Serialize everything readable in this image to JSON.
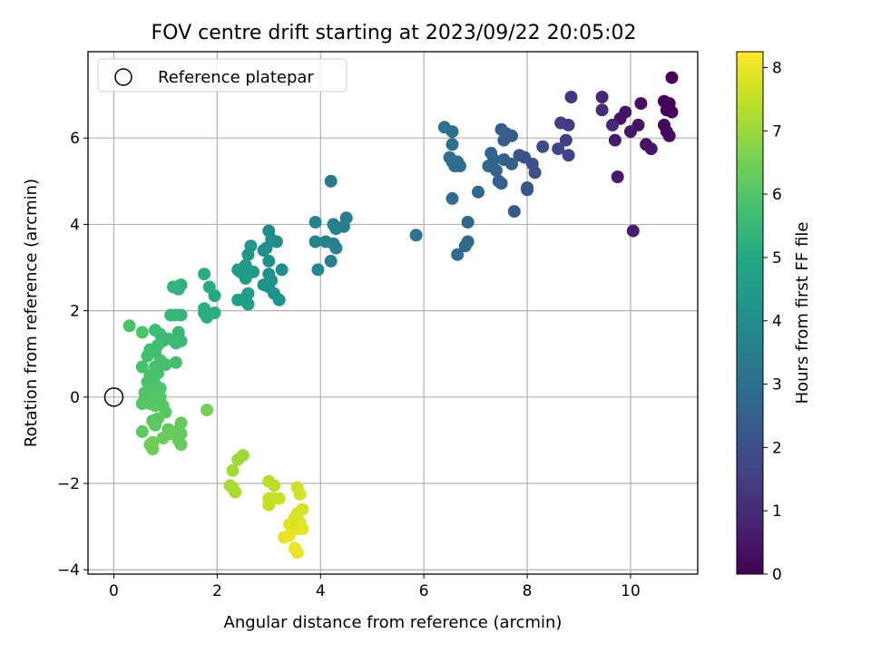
{
  "chart_data": {
    "type": "scatter",
    "title": "FOV centre drift starting at 2023/09/22 20:05:02",
    "xlabel": "Angular distance from reference (arcmin)",
    "ylabel": "Rotation from reference (arcmin)",
    "xlim": [
      -0.5,
      11.3
    ],
    "ylim": [
      -4.1,
      8.0
    ],
    "xticks": [
      0,
      2,
      4,
      6,
      8,
      10
    ],
    "yticks": [
      -4,
      -2,
      0,
      2,
      4,
      6
    ],
    "grid": true,
    "legend": {
      "position": "top-left",
      "entries": [
        "Reference platepar"
      ]
    },
    "reference_point": {
      "x": 0,
      "y": 0
    },
    "colorbar": {
      "label": "Hours from first FF file",
      "range": [
        0,
        8.25
      ],
      "ticks": [
        0,
        1,
        2,
        3,
        4,
        5,
        6,
        7,
        8
      ],
      "colormap": "viridis"
    },
    "series": [
      {
        "points": [
          [
            10.8,
            7.4,
            0.05
          ],
          [
            10.65,
            6.85,
            0.1
          ],
          [
            10.75,
            6.8,
            0.1
          ],
          [
            10.7,
            6.65,
            0.1
          ],
          [
            10.8,
            6.6,
            0.15
          ],
          [
            10.65,
            6.3,
            0.2
          ],
          [
            10.7,
            6.15,
            0.2
          ],
          [
            10.75,
            6.05,
            0.2
          ],
          [
            10.2,
            6.8,
            0.35
          ],
          [
            9.8,
            6.45,
            0.4
          ],
          [
            9.9,
            6.6,
            0.45
          ],
          [
            10.15,
            6.3,
            0.4
          ],
          [
            10.3,
            5.85,
            0.4
          ],
          [
            10.4,
            5.75,
            0.45
          ],
          [
            10.0,
            6.15,
            0.5
          ],
          [
            9.7,
            5.95,
            0.6
          ],
          [
            9.75,
            5.1,
            0.6
          ],
          [
            10.05,
            3.85,
            0.65
          ],
          [
            9.45,
            6.95,
            0.9
          ],
          [
            9.45,
            6.65,
            1.0
          ],
          [
            9.65,
            6.3,
            0.9
          ],
          [
            8.85,
            6.95,
            1.3
          ],
          [
            8.65,
            6.35,
            1.5
          ],
          [
            8.8,
            6.3,
            1.45
          ],
          [
            8.75,
            5.95,
            1.55
          ],
          [
            8.8,
            5.6,
            1.6
          ],
          [
            8.6,
            5.75,
            1.75
          ],
          [
            8.3,
            5.8,
            1.9
          ],
          [
            8.1,
            5.4,
            1.95
          ],
          [
            8.15,
            5.2,
            2.0
          ],
          [
            7.95,
            5.55,
            2.1
          ],
          [
            7.85,
            5.6,
            2.15
          ],
          [
            8.0,
            4.85,
            2.1
          ],
          [
            8.0,
            4.8,
            2.2
          ],
          [
            7.7,
            6.05,
            2.3
          ],
          [
            7.6,
            6.1,
            2.35
          ],
          [
            7.5,
            6.2,
            2.4
          ],
          [
            7.55,
            5.95,
            2.4
          ],
          [
            7.55,
            5.5,
            2.5
          ],
          [
            7.7,
            5.4,
            2.45
          ],
          [
            7.75,
            4.3,
            2.3
          ],
          [
            7.3,
            5.65,
            2.55
          ],
          [
            7.35,
            5.5,
            2.6
          ],
          [
            7.4,
            5.25,
            2.6
          ],
          [
            7.45,
            5.0,
            2.5
          ],
          [
            7.5,
            4.95,
            2.55
          ],
          [
            7.25,
            5.35,
            2.7
          ],
          [
            7.05,
            4.75,
            2.75
          ],
          [
            6.85,
            4.05,
            2.75
          ],
          [
            6.85,
            3.6,
            2.85
          ],
          [
            6.8,
            3.5,
            2.8
          ],
          [
            6.65,
            3.3,
            2.9
          ],
          [
            6.55,
            4.6,
            2.9
          ],
          [
            6.6,
            5.35,
            2.95
          ],
          [
            6.55,
            5.45,
            2.95
          ],
          [
            6.65,
            5.45,
            2.9
          ],
          [
            6.7,
            5.35,
            2.95
          ],
          [
            6.5,
            5.55,
            3.0
          ],
          [
            6.55,
            5.85,
            3.0
          ],
          [
            6.55,
            6.15,
            3.0
          ],
          [
            6.4,
            6.25,
            3.05
          ],
          [
            5.85,
            3.75,
            3.1
          ],
          [
            4.2,
            5.0,
            3.3
          ],
          [
            4.5,
            4.15,
            3.4
          ],
          [
            4.45,
            3.95,
            3.45
          ],
          [
            4.25,
            4.0,
            3.5
          ],
          [
            4.3,
            3.9,
            3.55
          ],
          [
            4.3,
            3.45,
            3.55
          ],
          [
            4.25,
            3.55,
            3.6
          ],
          [
            4.1,
            3.6,
            3.6
          ],
          [
            4.2,
            3.15,
            3.6
          ],
          [
            3.9,
            3.6,
            3.65
          ],
          [
            3.9,
            4.05,
            3.7
          ],
          [
            3.95,
            2.95,
            3.75
          ],
          [
            3.0,
            3.85,
            3.9
          ],
          [
            3.25,
            2.95,
            3.95
          ],
          [
            3.15,
            3.6,
            4.0
          ],
          [
            3.05,
            3.65,
            4.0
          ],
          [
            2.95,
            3.45,
            4.05
          ],
          [
            2.9,
            3.4,
            4.05
          ],
          [
            3.0,
            3.15,
            4.1
          ],
          [
            3.0,
            2.85,
            4.1
          ],
          [
            3.05,
            2.7,
            4.15
          ],
          [
            3.0,
            2.55,
            4.2
          ],
          [
            2.9,
            2.6,
            4.2
          ],
          [
            3.1,
            2.4,
            4.25
          ],
          [
            3.2,
            2.25,
            4.25
          ],
          [
            2.65,
            3.5,
            4.3
          ],
          [
            2.6,
            3.3,
            4.35
          ],
          [
            2.55,
            3.05,
            4.4
          ],
          [
            2.5,
            2.95,
            4.4
          ],
          [
            2.7,
            2.9,
            4.45
          ],
          [
            2.6,
            2.9,
            4.45
          ],
          [
            2.55,
            2.75,
            4.5
          ],
          [
            2.45,
            2.9,
            4.5
          ],
          [
            2.4,
            2.95,
            4.5
          ],
          [
            2.6,
            2.4,
            4.55
          ],
          [
            2.55,
            2.3,
            4.6
          ],
          [
            2.5,
            2.25,
            4.6
          ],
          [
            2.4,
            2.25,
            4.65
          ],
          [
            2.6,
            2.15,
            4.65
          ],
          [
            1.95,
            2.35,
            5.0
          ],
          [
            1.85,
            2.55,
            5.05
          ],
          [
            1.75,
            2.85,
            5.1
          ],
          [
            1.95,
            1.95,
            5.15
          ],
          [
            1.75,
            2.05,
            5.2
          ],
          [
            1.8,
            1.85,
            5.2
          ],
          [
            1.75,
            1.95,
            5.2
          ],
          [
            1.3,
            2.6,
            5.3
          ],
          [
            1.25,
            2.5,
            5.3
          ],
          [
            1.15,
            2.55,
            5.35
          ],
          [
            1.2,
            1.9,
            5.4
          ],
          [
            1.3,
            1.9,
            5.4
          ],
          [
            1.1,
            1.9,
            5.45
          ],
          [
            1.25,
            1.5,
            5.5
          ],
          [
            1.3,
            1.3,
            5.5
          ],
          [
            1.2,
            1.25,
            5.55
          ],
          [
            1.05,
            1.35,
            5.6
          ],
          [
            0.95,
            1.3,
            5.6
          ],
          [
            0.9,
            1.45,
            5.6
          ],
          [
            0.8,
            1.55,
            5.65
          ],
          [
            0.85,
            1.2,
            5.7
          ],
          [
            0.8,
            1.05,
            5.7
          ],
          [
            0.7,
            1.1,
            5.7
          ],
          [
            0.65,
            0.95,
            5.75
          ],
          [
            1.2,
            0.8,
            5.75
          ],
          [
            1.0,
            0.75,
            5.75
          ],
          [
            0.9,
            0.85,
            5.8
          ],
          [
            0.85,
            0.55,
            5.8
          ],
          [
            0.8,
            0.7,
            5.8
          ],
          [
            0.7,
            0.5,
            5.85
          ],
          [
            0.55,
            0.7,
            5.85
          ],
          [
            0.3,
            1.65,
            5.9
          ],
          [
            0.55,
            1.5,
            5.9
          ],
          [
            0.65,
            0.35,
            5.9
          ],
          [
            0.8,
            0.3,
            5.9
          ],
          [
            0.75,
            0.15,
            5.95
          ],
          [
            0.9,
            0.2,
            5.95
          ],
          [
            0.6,
            0.1,
            6.0
          ],
          [
            0.6,
            -0.05,
            6.0
          ],
          [
            0.55,
            -0.15,
            6.0
          ],
          [
            0.75,
            0.0,
            6.05
          ],
          [
            0.9,
            0.0,
            6.05
          ],
          [
            0.95,
            -0.2,
            6.05
          ],
          [
            0.8,
            -0.2,
            6.1
          ],
          [
            0.7,
            -0.15,
            6.1
          ],
          [
            1.0,
            -0.35,
            6.1
          ],
          [
            0.85,
            -0.5,
            6.15
          ],
          [
            0.75,
            -0.55,
            6.15
          ],
          [
            0.8,
            -0.65,
            6.2
          ],
          [
            0.55,
            -0.8,
            6.2
          ],
          [
            1.05,
            -0.75,
            6.2
          ],
          [
            1.2,
            -0.8,
            6.25
          ],
          [
            1.3,
            -0.6,
            6.25
          ],
          [
            1.3,
            -0.85,
            6.3
          ],
          [
            1.25,
            -1.0,
            6.3
          ],
          [
            1.3,
            -1.1,
            6.3
          ],
          [
            1.1,
            -0.85,
            6.35
          ],
          [
            0.95,
            -0.95,
            6.35
          ],
          [
            0.75,
            -1.05,
            6.4
          ],
          [
            0.75,
            -1.2,
            6.4
          ],
          [
            0.7,
            -1.1,
            6.45
          ],
          [
            1.8,
            -0.3,
            6.5
          ],
          [
            2.5,
            -1.35,
            7.0
          ],
          [
            2.4,
            -1.45,
            7.05
          ],
          [
            2.3,
            -1.7,
            7.1
          ],
          [
            2.25,
            -2.05,
            7.15
          ],
          [
            2.3,
            -2.1,
            7.15
          ],
          [
            2.35,
            -2.2,
            7.2
          ],
          [
            3.0,
            -1.95,
            7.35
          ],
          [
            3.1,
            -2.05,
            7.4
          ],
          [
            3.1,
            -2.35,
            7.45
          ],
          [
            3.0,
            -2.35,
            7.5
          ],
          [
            3.0,
            -2.5,
            7.5
          ],
          [
            3.2,
            -2.35,
            7.55
          ],
          [
            3.55,
            -2.1,
            7.65
          ],
          [
            3.6,
            -2.25,
            7.7
          ],
          [
            3.65,
            -2.6,
            7.75
          ],
          [
            3.55,
            -2.7,
            7.75
          ],
          [
            3.5,
            -2.8,
            7.8
          ],
          [
            3.6,
            -2.9,
            7.8
          ],
          [
            3.4,
            -2.95,
            7.85
          ],
          [
            3.55,
            -3.05,
            7.85
          ],
          [
            3.65,
            -3.05,
            7.9
          ],
          [
            3.4,
            -3.2,
            7.9
          ],
          [
            3.3,
            -3.25,
            7.95
          ],
          [
            3.5,
            -3.5,
            8.0
          ],
          [
            3.55,
            -3.6,
            8.0
          ]
        ]
      }
    ]
  }
}
